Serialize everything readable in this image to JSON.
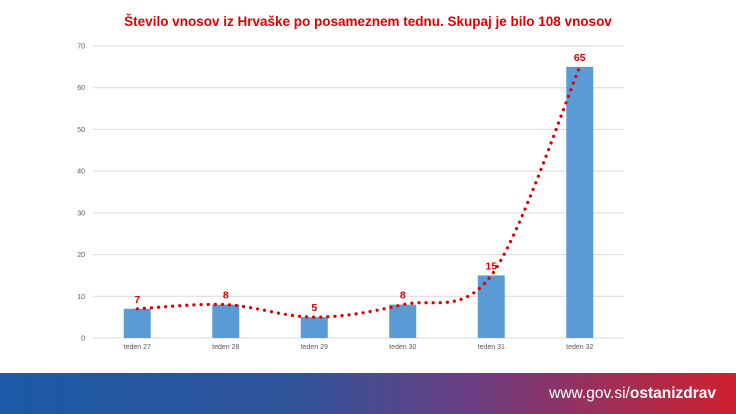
{
  "chart_data": {
    "type": "bar",
    "title": "Število vnosov iz Hrvaške po posameznem tednu. Skupaj je bilo 108 vnosov",
    "categories": [
      "teden 27",
      "teden 28",
      "teden 29",
      "teden 30",
      "teden 31",
      "teden 32"
    ],
    "values": [
      7,
      8,
      5,
      8,
      15,
      65
    ],
    "ylim": [
      0,
      70
    ],
    "yticks": [
      0,
      10,
      20,
      30,
      40,
      50,
      60,
      70
    ],
    "grid": true,
    "data_labels": true,
    "trendline": "dotted polynomial",
    "xlabel": "",
    "ylabel": ""
  },
  "colors": {
    "bar": "#5b9bd5",
    "trend": "#e00000",
    "title": "#e00000",
    "grid": "#d9d9d9",
    "footer_start": "#1a5aa6",
    "footer_end": "#d0202f"
  },
  "footer": {
    "url_prefix": "www.gov.si/",
    "url_bold": "ostanizdrav"
  }
}
